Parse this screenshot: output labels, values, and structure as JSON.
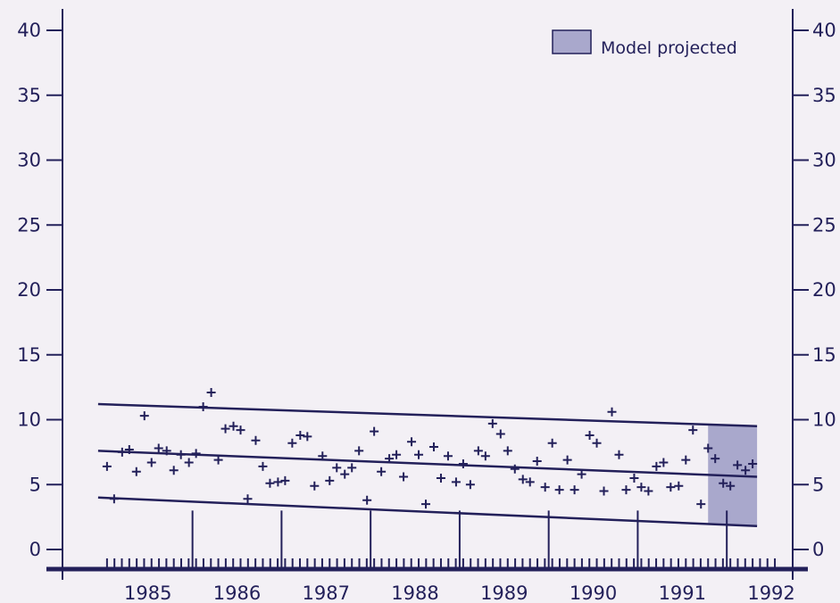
{
  "colors": {
    "ink": "#23205a",
    "projection_fill": "#a9a8cc",
    "background": "#f3f0f5"
  },
  "legend": {
    "label": "Model projected"
  },
  "chart_data": {
    "type": "scatter",
    "title": "",
    "xlabel": "",
    "ylabel": "",
    "xlim": [
      1984.5,
      1992.7
    ],
    "ylim": [
      -1,
      41
    ],
    "y_ticks": [
      0,
      5,
      10,
      15,
      20,
      25,
      30,
      35,
      40
    ],
    "x_ticks": [
      1985,
      1986,
      1987,
      1988,
      1989,
      1990,
      1991,
      1992
    ],
    "grid": false,
    "legend_position": "top-right",
    "projection_range": [
      1991.75,
      1992.7
    ],
    "series": [
      {
        "role": "points",
        "marker": "+",
        "points": [
          [
            1985.0,
            6.4
          ],
          [
            1985.08,
            3.9
          ],
          [
            1985.17,
            7.5
          ],
          [
            1985.25,
            7.7
          ],
          [
            1985.33,
            6.0
          ],
          [
            1985.42,
            10.3
          ],
          [
            1985.5,
            6.7
          ],
          [
            1985.58,
            7.8
          ],
          [
            1985.67,
            7.6
          ],
          [
            1985.75,
            6.1
          ],
          [
            1985.83,
            7.3
          ],
          [
            1985.92,
            6.7
          ],
          [
            1986.0,
            7.4
          ],
          [
            1986.08,
            11.0
          ],
          [
            1986.17,
            12.1
          ],
          [
            1986.25,
            6.9
          ],
          [
            1986.33,
            9.3
          ],
          [
            1986.42,
            9.5
          ],
          [
            1986.5,
            9.2
          ],
          [
            1986.58,
            3.9
          ],
          [
            1986.67,
            8.4
          ],
          [
            1986.75,
            6.4
          ],
          [
            1986.83,
            5.1
          ],
          [
            1986.92,
            5.2
          ],
          [
            1987.0,
            5.3
          ],
          [
            1987.08,
            8.2
          ],
          [
            1987.17,
            8.8
          ],
          [
            1987.25,
            8.7
          ],
          [
            1987.33,
            4.9
          ],
          [
            1987.42,
            7.2
          ],
          [
            1987.5,
            5.3
          ],
          [
            1987.58,
            6.3
          ],
          [
            1987.67,
            5.8
          ],
          [
            1987.75,
            6.3
          ],
          [
            1987.83,
            7.6
          ],
          [
            1987.92,
            3.8
          ],
          [
            1988.0,
            9.1
          ],
          [
            1988.08,
            6.0
          ],
          [
            1988.17,
            7.0
          ],
          [
            1988.25,
            7.3
          ],
          [
            1988.33,
            5.6
          ],
          [
            1988.42,
            8.3
          ],
          [
            1988.5,
            7.3
          ],
          [
            1988.58,
            3.5
          ],
          [
            1988.67,
            7.9
          ],
          [
            1988.75,
            5.5
          ],
          [
            1988.83,
            7.2
          ],
          [
            1988.92,
            5.2
          ],
          [
            1989.0,
            6.6
          ],
          [
            1989.08,
            5.0
          ],
          [
            1989.17,
            7.6
          ],
          [
            1989.25,
            7.2
          ],
          [
            1989.33,
            9.7
          ],
          [
            1989.42,
            8.9
          ],
          [
            1989.5,
            7.6
          ],
          [
            1989.58,
            6.2
          ],
          [
            1989.67,
            5.4
          ],
          [
            1989.75,
            5.2
          ],
          [
            1989.83,
            6.8
          ],
          [
            1989.92,
            4.8
          ],
          [
            1990.0,
            8.2
          ],
          [
            1990.08,
            4.6
          ],
          [
            1990.17,
            6.9
          ],
          [
            1990.25,
            4.6
          ],
          [
            1990.33,
            5.8
          ],
          [
            1990.42,
            8.8
          ],
          [
            1990.5,
            8.2
          ],
          [
            1990.58,
            4.5
          ],
          [
            1990.67,
            10.6
          ],
          [
            1990.75,
            7.3
          ],
          [
            1990.83,
            4.6
          ],
          [
            1990.92,
            5.5
          ],
          [
            1991.0,
            4.8
          ],
          [
            1991.08,
            4.5
          ],
          [
            1991.17,
            6.4
          ],
          [
            1991.25,
            6.7
          ],
          [
            1991.33,
            4.8
          ],
          [
            1991.42,
            4.9
          ],
          [
            1991.5,
            6.9
          ],
          [
            1991.58,
            9.2
          ],
          [
            1991.67,
            3.5
          ],
          [
            1991.75,
            7.8
          ],
          [
            1991.83,
            7.0
          ],
          [
            1991.92,
            5.1
          ],
          [
            1992.0,
            4.9
          ],
          [
            1992.08,
            6.5
          ],
          [
            1992.17,
            6.1
          ],
          [
            1992.25,
            6.6
          ]
        ]
      },
      {
        "role": "upper-bound",
        "x": [
          1984.9,
          1992.3
        ],
        "values": [
          11.2,
          9.5
        ]
      },
      {
        "role": "trend",
        "x": [
          1984.9,
          1992.3
        ],
        "values": [
          7.6,
          5.6
        ]
      },
      {
        "role": "lower-bound",
        "x": [
          1984.9,
          1992.3
        ],
        "values": [
          4.0,
          1.8
        ]
      }
    ]
  }
}
